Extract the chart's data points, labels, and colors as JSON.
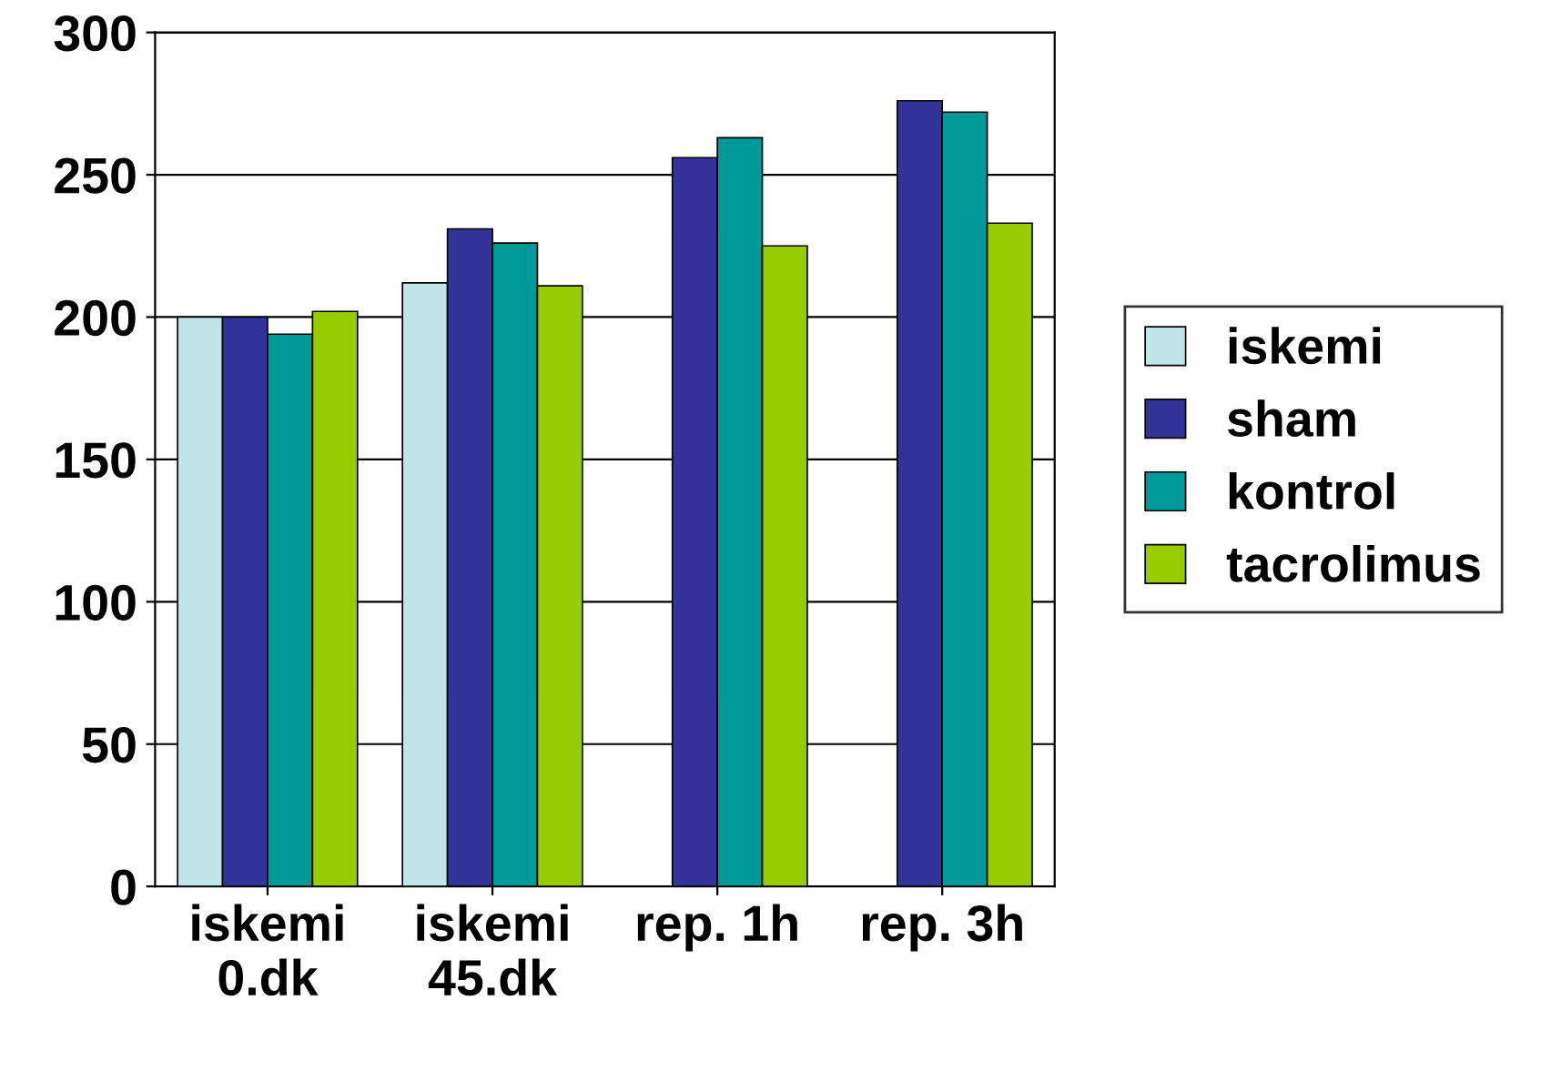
{
  "chart_data": {
    "type": "bar",
    "categories": [
      "iskemi\n0.dk",
      "iskemi\n45.dk",
      "rep. 1h",
      "rep. 3h"
    ],
    "series": [
      {
        "name": "iskemi",
        "color": "#c0e4e8",
        "values": [
          200,
          212,
          null,
          null
        ]
      },
      {
        "name": "sham",
        "color": "#333399",
        "values": [
          200,
          231,
          256,
          276
        ]
      },
      {
        "name": "kontrol",
        "color": "#009999",
        "values": [
          194,
          226,
          263,
          272
        ]
      },
      {
        "name": "tacrolimus",
        "color": "#99cc00",
        "values": [
          202,
          211,
          225,
          233
        ]
      }
    ],
    "ylim": [
      0,
      300
    ],
    "yticks": [
      0,
      50,
      100,
      150,
      200,
      250,
      300
    ],
    "grid": "y",
    "legend": "right"
  }
}
